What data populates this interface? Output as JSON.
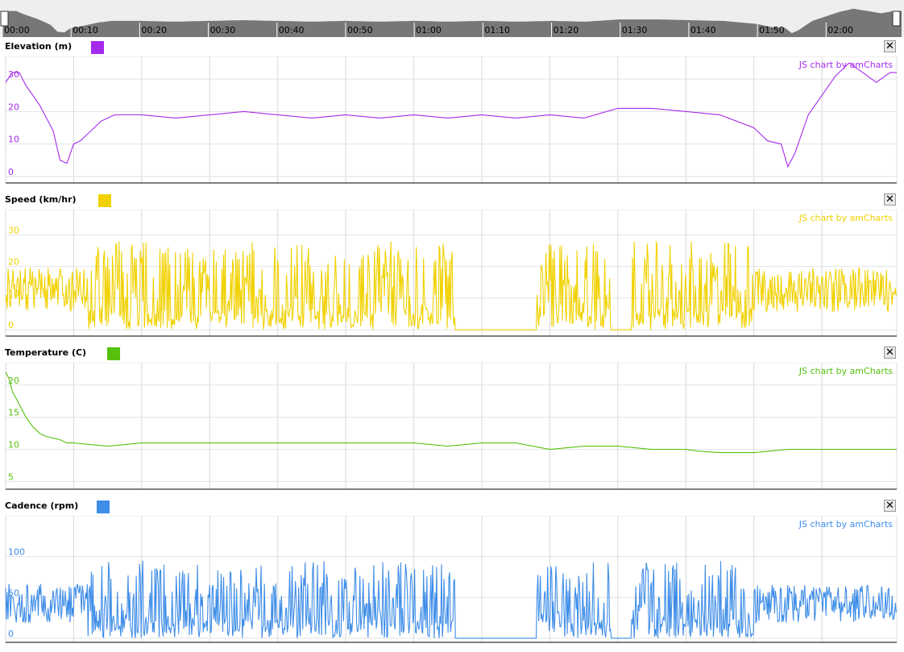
{
  "scroller": {
    "tick_labels": [
      "00:00",
      "00:10",
      "00:20",
      "00:30",
      "00:40",
      "00:50",
      "01:00",
      "01:10",
      "01:20",
      "01:30",
      "01:40",
      "01:50",
      "02:00"
    ]
  },
  "credit": "JS chart by amCharts",
  "close_glyph": "✕",
  "time_ticks_min": [
    0,
    10,
    20,
    30,
    40,
    50,
    60,
    70,
    80,
    90,
    100,
    110,
    120
  ],
  "x_range_min": [
    0,
    131
  ],
  "chart_data": [
    {
      "type": "line",
      "title": "Elevation (m)",
      "color": "#a52aeb",
      "yticks": [
        0,
        10,
        20,
        30
      ],
      "ylim": [
        -2,
        37
      ],
      "x": [
        0,
        1,
        2,
        3,
        4,
        5,
        6,
        7,
        8,
        9,
        10,
        11,
        12,
        13,
        14,
        15,
        16,
        18,
        20,
        25,
        30,
        35,
        40,
        45,
        50,
        55,
        60,
        65,
        70,
        75,
        80,
        85,
        90,
        95,
        100,
        105,
        110,
        112,
        114,
        115,
        116,
        118,
        120,
        122,
        124,
        126,
        128,
        130,
        131
      ],
      "values": [
        29,
        32,
        32,
        28,
        25,
        22,
        18,
        14,
        5,
        4,
        10,
        11,
        13,
        15,
        17,
        18,
        19,
        19,
        19,
        18,
        19,
        20,
        19,
        18,
        19,
        18,
        19,
        18,
        19,
        18,
        19,
        18,
        21,
        21,
        20,
        19,
        15,
        11,
        10,
        3,
        7,
        19,
        25,
        31,
        35,
        32,
        29,
        32,
        32
      ]
    },
    {
      "type": "line",
      "title": "Speed (km/hr)",
      "color": "#f1d100",
      "yticks": [
        0,
        10,
        20,
        30
      ],
      "ylim": [
        -2,
        38
      ]
    },
    {
      "type": "line",
      "title": "Temperature (C)",
      "color": "#55c10d",
      "yticks": [
        5,
        10,
        15,
        20
      ],
      "ylim": [
        3.8,
        23.5
      ],
      "x": [
        0,
        0.5,
        1,
        2,
        3,
        4,
        5,
        6,
        8,
        9,
        10,
        15,
        20,
        25,
        30,
        35,
        40,
        45,
        50,
        55,
        60,
        65,
        70,
        75,
        80,
        85,
        90,
        95,
        100,
        102,
        105,
        110,
        115,
        120,
        125,
        131
      ],
      "values": [
        22,
        21,
        19,
        17,
        15,
        13.5,
        12.5,
        12,
        11.5,
        11,
        11,
        10.5,
        11,
        11,
        11,
        11,
        11,
        11,
        11,
        11,
        11,
        10.5,
        11,
        11,
        10,
        10.5,
        10.5,
        10,
        10,
        9.7,
        9.5,
        9.5,
        10,
        10,
        10,
        10
      ]
    },
    {
      "type": "line",
      "title": "Cadence (rpm)",
      "color": "#3e8de8",
      "yticks": [
        0,
        50,
        100
      ],
      "ylim": [
        -5,
        150
      ]
    }
  ]
}
